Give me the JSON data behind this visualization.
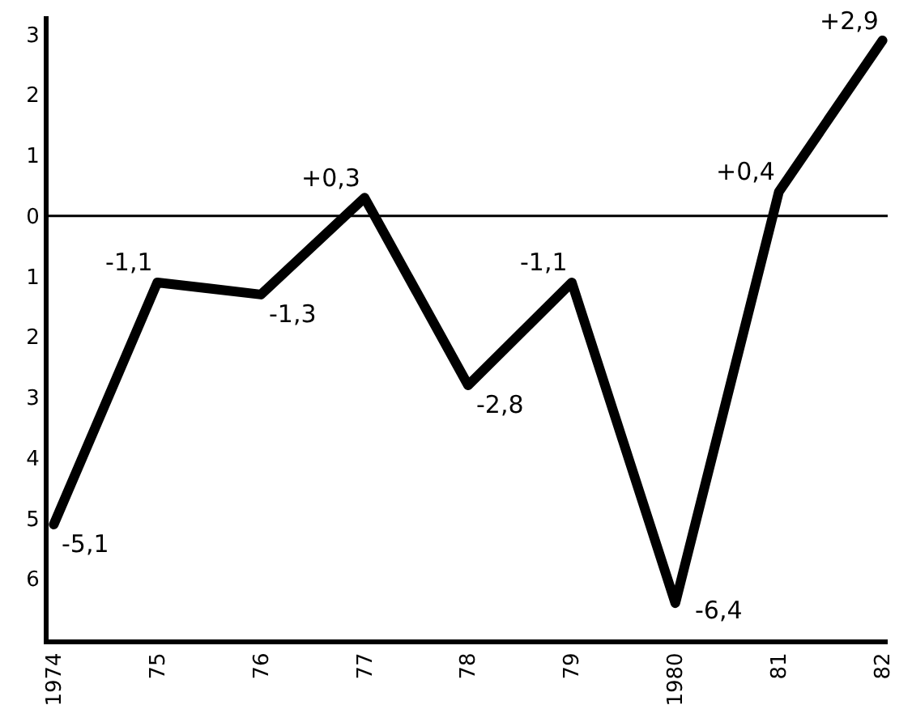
{
  "chart_data": {
    "type": "line",
    "categories": [
      "1974",
      "75",
      "76",
      "77",
      "78",
      "79",
      "1980",
      "81",
      "82"
    ],
    "values": [
      -5.1,
      -1.1,
      -1.3,
      0.3,
      -2.8,
      -1.1,
      -6.4,
      0.4,
      2.9
    ],
    "value_labels": [
      "-5,1",
      "-1,1",
      "-1,3",
      "+0,3",
      "-2,8",
      "-1,1",
      "-6,4",
      "+0,4",
      "+2,9"
    ],
    "color": "#000000",
    "ylim": [
      -7,
      3.3
    ],
    "yticks": [
      {
        "value": -6,
        "label": "6"
      },
      {
        "value": -5,
        "label": "5"
      },
      {
        "value": -4,
        "label": "4"
      },
      {
        "value": -3,
        "label": "3"
      },
      {
        "value": -2,
        "label": "2"
      },
      {
        "value": -1,
        "label": "1"
      },
      0,
      1,
      2,
      3
    ],
    "ref_lines": [
      {
        "axis": "y",
        "value": 0,
        "color": "#000000"
      }
    ],
    "marker": "none",
    "line_style": "solid"
  }
}
